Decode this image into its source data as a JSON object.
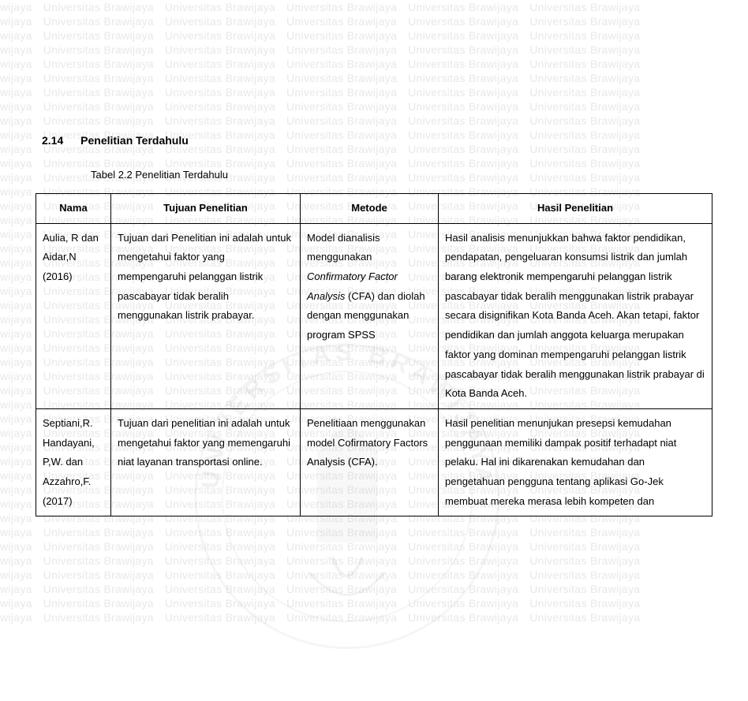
{
  "watermark": {
    "text": "Universitas Brawijaya",
    "partial_left": "wijaya",
    "repeat_cols": 5,
    "repeat_rows": 44,
    "text_color": "#e8e8e8"
  },
  "section": {
    "number": "2.14",
    "title": "Penelitian Terdahulu"
  },
  "table_caption": "Tabel 2.2 Penelitian Terdahulu",
  "table": {
    "headers": {
      "nama": "Nama",
      "tujuan": "Tujuan Penelitian",
      "metode": "Metode",
      "hasil": "Hasil Penelitian"
    },
    "rows": [
      {
        "nama": "Aulia, R dan Aidar,N (2016)",
        "tujuan": "Tujuan dari Penelitian ini adalah untuk mengetahui faktor yang mempengaruhi pelanggan listrik pascabayar tidak beralih menggunakan listrik prabayar.",
        "metode_pre": "Model dianalisis menggunakan ",
        "metode_italic": "Confirmatory Factor Analysis",
        "metode_post": " (CFA) dan diolah dengan menggunakan program SPSS",
        "hasil": "Hasil analisis menunjukkan bahwa faktor pendidikan, pendapatan, pengeluaran konsumsi listrik dan jumlah barang elektronik mempengaruhi pelanggan listrik pascabayar tidak beralih menggunakan listrik prabayar secara disignifikan Kota Banda Aceh. Akan tetapi, faktor pendidikan dan jumlah anggota keluarga merupakan faktor yang dominan mempengaruhi pelanggan listrik pascabayar tidak beralih menggunakan listrik prabayar di Kota Banda Aceh."
      },
      {
        "nama": "Septiani,R. Handayani, P,W. dan Azzahro,F. (2017)",
        "tujuan": "Tujuan dari penelitian ini adalah untuk mengetahui faktor yang memengaruhi niat layanan transportasi online.",
        "metode_pre": "Penelitiaan menggunakan model Cofirmatory Factors Analysis (CFA).",
        "metode_italic": "",
        "metode_post": "",
        "hasil": "Hasil penelitian menunjukan presepsi kemudahan penggunaan memiliki dampak positif terhadapt niat pelaku. Hal ini dikarenakan kemudahan dan pengetahuan pengguna tentang aplikasi Go-Jek membuat mereka merasa lebih kompeten dan"
      }
    ]
  },
  "colors": {
    "background": "#ffffff",
    "text": "#000000",
    "border": "#000000",
    "watermark": "#e8e8e8"
  },
  "logo_arc_text": "UNIVERSITAS BRAWIJAYA"
}
